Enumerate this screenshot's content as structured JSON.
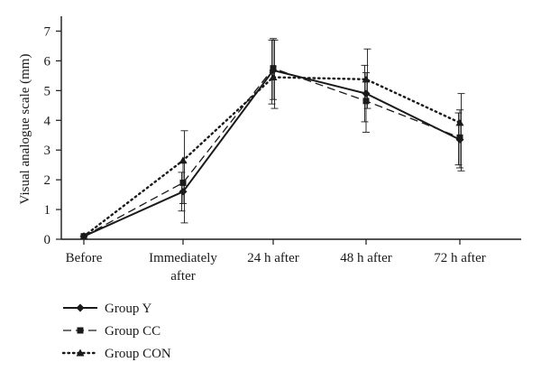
{
  "chart_data": {
    "type": "line",
    "title": "",
    "xlabel": "",
    "ylabel": "Visual analogue scale (mm)",
    "ylim": [
      0,
      7.5
    ],
    "yticks": [
      0,
      1,
      2,
      3,
      4,
      5,
      6,
      7
    ],
    "categories": [
      [
        "Before"
      ],
      [
        "Immediately",
        "after"
      ],
      [
        "24 h after"
      ],
      [
        "48 h after"
      ],
      [
        "72 h after"
      ]
    ],
    "grid": false,
    "legend_position": "bottom-left",
    "series": [
      {
        "name": "Group Y",
        "marker": "diamond",
        "line": "solid",
        "values": [
          0.1,
          1.6,
          5.68,
          4.9,
          3.35
        ],
        "error_low": [
          0.1,
          0.95,
          4.55,
          3.95,
          2.5
        ],
        "error_high": [
          0.1,
          2.25,
          6.7,
          5.85,
          4.25
        ]
      },
      {
        "name": "Group CC",
        "marker": "square",
        "line": "dashed",
        "values": [
          0.1,
          1.9,
          5.75,
          4.65,
          3.42
        ],
        "error_low": [
          0.1,
          1.2,
          4.7,
          3.6,
          2.4
        ],
        "error_high": [
          0.1,
          2.6,
          6.75,
          5.6,
          4.35
        ]
      },
      {
        "name": "Group CON",
        "marker": "triangle",
        "line": "dotted",
        "values": [
          0.1,
          2.65,
          5.45,
          5.38,
          3.92
        ],
        "error_low": [
          0.1,
          0.55,
          4.4,
          4.4,
          2.3
        ],
        "error_high": [
          0.1,
          3.65,
          6.7,
          6.4,
          4.9
        ]
      }
    ]
  }
}
